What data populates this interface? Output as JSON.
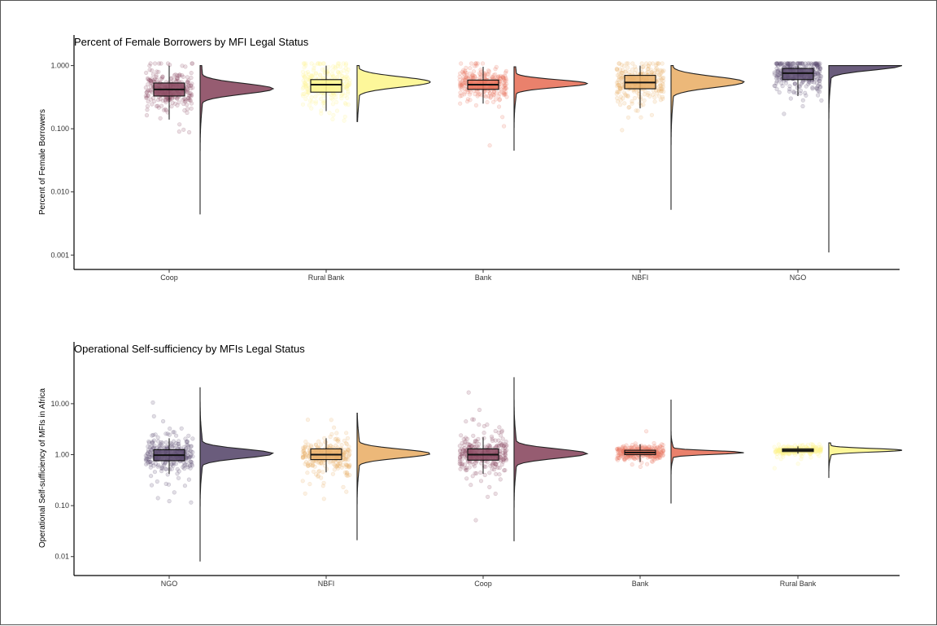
{
  "chart_data": [
    {
      "type": "raincloud",
      "title": "Percent of Female Borrowers by MFI Legal Status",
      "ylabel": "Percent of Female Borrowers",
      "xlabel": "",
      "yscale": "log10",
      "ylim": [
        0.00075,
        1.08
      ],
      "yticks": [
        0.001,
        0.01,
        0.1,
        1.0
      ],
      "ytick_labels": [
        "0.001",
        "0.010",
        "0.100",
        "1.000"
      ],
      "grid": false,
      "legend": "none",
      "categories": [
        "Coop",
        "Rural Bank",
        "Bank",
        "NBFI",
        "NGO"
      ],
      "colors": [
        "#8b4a62",
        "#fdf68f",
        "#e8735c",
        "#eab06a",
        "#5a4a6e"
      ],
      "boxes": [
        {
          "category": "Coop",
          "whisker_low": 0.14,
          "q1": 0.33,
          "median": 0.42,
          "q3": 0.53,
          "whisker_high": 1.0,
          "min": 0.0044
        },
        {
          "category": "Rural Bank",
          "whisker_low": 0.19,
          "q1": 0.38,
          "median": 0.5,
          "q3": 0.6,
          "whisker_high": 1.0,
          "min": 0.13
        },
        {
          "category": "Bank",
          "whisker_low": 0.25,
          "q1": 0.42,
          "median": 0.5,
          "q3": 0.59,
          "whisker_high": 0.96,
          "min": 0.045
        },
        {
          "category": "NBFI",
          "whisker_low": 0.21,
          "q1": 0.43,
          "median": 0.54,
          "q3": 0.7,
          "whisker_high": 1.0,
          "min": 0.0052
        },
        {
          "category": "NGO",
          "whisker_low": 0.33,
          "q1": 0.6,
          "median": 0.76,
          "q3": 0.9,
          "whisker_high": 1.0,
          "min": 0.0011
        }
      ],
      "density_peaks": [
        0.43,
        0.55,
        0.52,
        0.55,
        1.0
      ]
    },
    {
      "type": "raincloud",
      "title": "Operational Self-sufficiency by MFIs Legal Status",
      "ylabel": "Operational Self-sufficiency of MFIs in Africa",
      "xlabel": "",
      "yscale": "log10",
      "ylim": [
        0.0055,
        45
      ],
      "yticks": [
        0.01,
        0.1,
        1.0,
        10.0
      ],
      "ytick_labels": [
        "0.01",
        "0.10",
        "1.00",
        "10.00"
      ],
      "grid": false,
      "legend": "none",
      "categories": [
        "NGO",
        "NBFI",
        "Coop",
        "Bank",
        "Rural Bank"
      ],
      "colors": [
        "#5a4a6e",
        "#eab06a",
        "#8b4a62",
        "#e8735c",
        "#fdf68f"
      ],
      "boxes": [
        {
          "category": "NGO",
          "whisker_low": 0.42,
          "q1": 0.76,
          "median": 0.98,
          "q3": 1.25,
          "whisker_high": 2.1,
          "min": 0.008,
          "max": 21
        },
        {
          "category": "NBFI",
          "whisker_low": 0.45,
          "q1": 0.8,
          "median": 1.0,
          "q3": 1.3,
          "whisker_high": 2.1,
          "min": 0.021,
          "max": 6.5
        },
        {
          "category": "Coop",
          "whisker_low": 0.42,
          "q1": 0.78,
          "median": 1.0,
          "q3": 1.3,
          "whisker_high": 2.2,
          "min": 0.02,
          "max": 33
        },
        {
          "category": "Bank",
          "whisker_low": 0.72,
          "q1": 1.0,
          "median": 1.1,
          "q3": 1.22,
          "whisker_high": 1.6,
          "min": 0.11,
          "max": 12
        },
        {
          "category": "Rural Bank",
          "whisker_low": 1.05,
          "q1": 1.15,
          "median": 1.22,
          "q3": 1.3,
          "whisker_high": 1.45,
          "min": 0.35,
          "max": 1.7
        }
      ],
      "density_peaks": [
        1.05,
        1.05,
        1.05,
        1.1,
        1.22
      ]
    }
  ]
}
